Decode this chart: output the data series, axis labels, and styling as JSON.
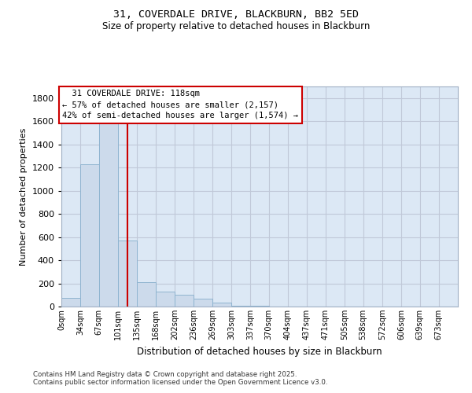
{
  "title_line1": "31, COVERDALE DRIVE, BLACKBURN, BB2 5ED",
  "title_line2": "Size of property relative to detached houses in Blackburn",
  "xlabel": "Distribution of detached houses by size in Blackburn",
  "ylabel": "Number of detached properties",
  "bar_labels": [
    "0sqm",
    "34sqm",
    "67sqm",
    "101sqm",
    "135sqm",
    "168sqm",
    "202sqm",
    "236sqm",
    "269sqm",
    "303sqm",
    "337sqm",
    "370sqm",
    "404sqm",
    "437sqm",
    "471sqm",
    "505sqm",
    "538sqm",
    "572sqm",
    "606sqm",
    "639sqm",
    "673sqm"
  ],
  "bar_values": [
    75,
    1230,
    1750,
    570,
    210,
    130,
    100,
    65,
    35,
    10,
    5,
    3,
    2,
    0,
    0,
    0,
    0,
    0,
    0,
    0,
    0
  ],
  "bin_edges": [
    0,
    34,
    67,
    101,
    135,
    168,
    202,
    236,
    269,
    303,
    337,
    370,
    404,
    437,
    471,
    505,
    538,
    572,
    606,
    639,
    673,
    707
  ],
  "bar_color": "#ccdaeb",
  "bar_edgecolor": "#8fb4d0",
  "vline_x": 118,
  "vline_color": "#cc0000",
  "annotation_text_line1": "  31 COVERDALE DRIVE: 118sqm",
  "annotation_text_line2": "← 57% of detached houses are smaller (2,157)",
  "annotation_text_line3": "42% of semi-detached houses are larger (1,574) →",
  "annotation_box_edgecolor": "#cc0000",
  "ylim": [
    0,
    1900
  ],
  "yticks": [
    0,
    200,
    400,
    600,
    800,
    1000,
    1200,
    1400,
    1600,
    1800
  ],
  "grid_color": "#c0c8d8",
  "bg_color": "#dce8f5",
  "footer_line1": "Contains HM Land Registry data © Crown copyright and database right 2025.",
  "footer_line2": "Contains public sector information licensed under the Open Government Licence v3.0."
}
